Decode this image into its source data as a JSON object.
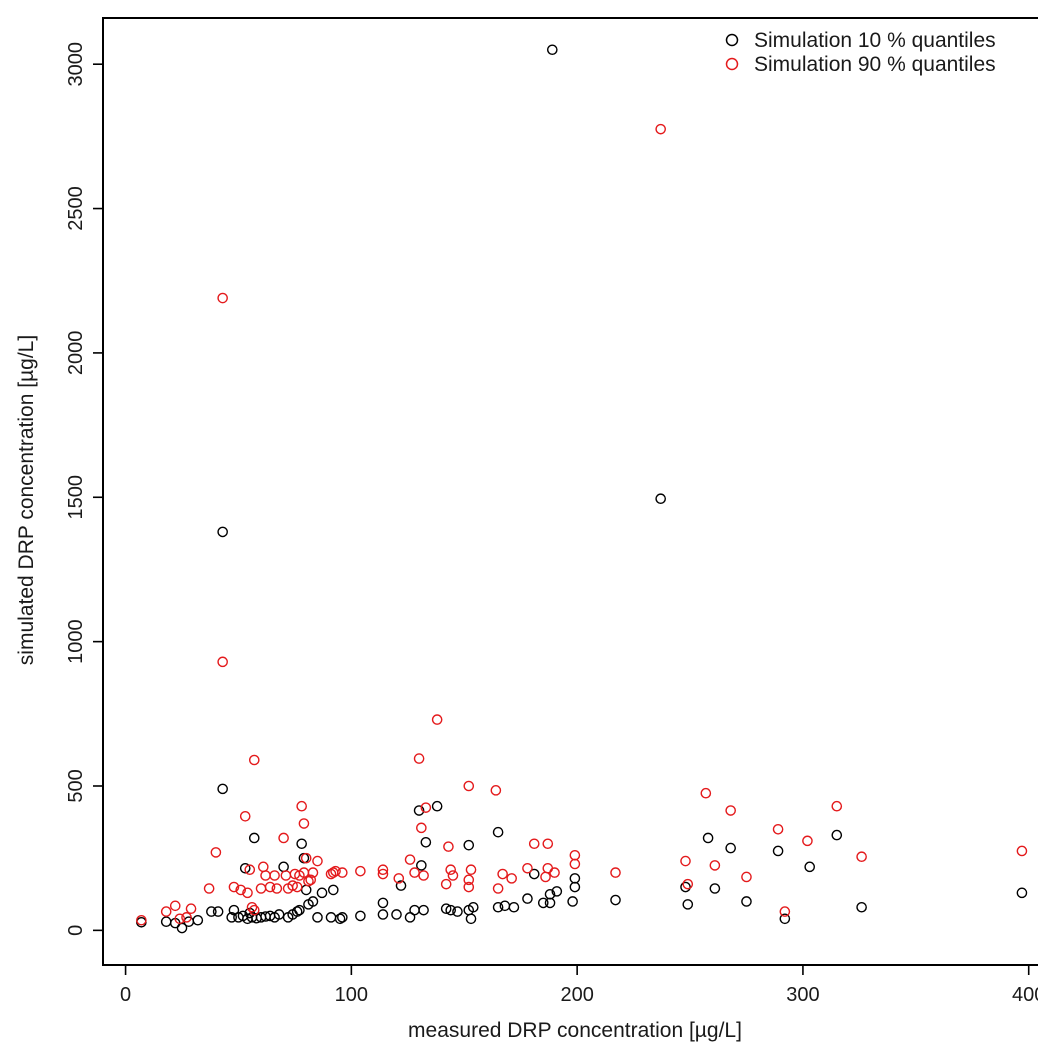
{
  "chart_data": {
    "type": "scatter",
    "title": "",
    "xlabel": "measured DRP concentration [µg/L]",
    "ylabel": "simulated DRP concentration [µg/L]",
    "xlim": [
      -10,
      405
    ],
    "ylim": [
      -120,
      3160
    ],
    "xticks": [
      0,
      100,
      200,
      300,
      400
    ],
    "yticks": [
      0,
      500,
      1000,
      1500,
      2000,
      2500,
      3000
    ],
    "xtick_labels": [
      "0",
      "100",
      "200",
      "300",
      "400"
    ],
    "ytick_labels": [
      "0",
      "500",
      "1000",
      "1500",
      "2000",
      "2500",
      "3000"
    ],
    "grid": false,
    "legend_position": "top-right",
    "legend_marker": "o",
    "series": [
      {
        "name": "Simulation 10 % quantiles",
        "color": "#000000",
        "points": [
          [
            7,
            28
          ],
          [
            18,
            30
          ],
          [
            22,
            25
          ],
          [
            25,
            8
          ],
          [
            28,
            30
          ],
          [
            32,
            35
          ],
          [
            38,
            65
          ],
          [
            41,
            65
          ],
          [
            43,
            490
          ],
          [
            43,
            1380
          ],
          [
            47,
            45
          ],
          [
            48,
            70
          ],
          [
            50,
            45
          ],
          [
            52,
            50
          ],
          [
            53,
            215
          ],
          [
            54,
            40
          ],
          [
            55,
            60
          ],
          [
            56,
            45
          ],
          [
            57,
            320
          ],
          [
            58,
            42
          ],
          [
            60,
            45
          ],
          [
            62,
            48
          ],
          [
            64,
            50
          ],
          [
            66,
            45
          ],
          [
            68,
            55
          ],
          [
            70,
            220
          ],
          [
            72,
            45
          ],
          [
            74,
            55
          ],
          [
            76,
            65
          ],
          [
            77,
            70
          ],
          [
            78,
            300
          ],
          [
            79,
            250
          ],
          [
            80,
            140
          ],
          [
            81,
            90
          ],
          [
            83,
            100
          ],
          [
            85,
            45
          ],
          [
            87,
            130
          ],
          [
            91,
            45
          ],
          [
            92,
            140
          ],
          [
            95,
            40
          ],
          [
            96,
            45
          ],
          [
            104,
            50
          ],
          [
            114,
            55
          ],
          [
            114,
            95
          ],
          [
            120,
            55
          ],
          [
            122,
            155
          ],
          [
            126,
            45
          ],
          [
            128,
            70
          ],
          [
            130,
            415
          ],
          [
            131,
            225
          ],
          [
            132,
            70
          ],
          [
            133,
            305
          ],
          [
            138,
            430
          ],
          [
            142,
            75
          ],
          [
            144,
            70
          ],
          [
            147,
            65
          ],
          [
            152,
            70
          ],
          [
            152,
            295
          ],
          [
            153,
            40
          ],
          [
            154,
            80
          ],
          [
            165,
            80
          ],
          [
            165,
            340
          ],
          [
            168,
            85
          ],
          [
            172,
            80
          ],
          [
            178,
            110
          ],
          [
            181,
            195
          ],
          [
            185,
            95
          ],
          [
            188,
            125
          ],
          [
            188,
            95
          ],
          [
            191,
            135
          ],
          [
            198,
            100
          ],
          [
            199,
            150
          ],
          [
            199,
            180
          ],
          [
            217,
            105
          ],
          [
            237,
            1495
          ],
          [
            248,
            150
          ],
          [
            249,
            90
          ],
          [
            258,
            320
          ],
          [
            261,
            145
          ],
          [
            268,
            285
          ],
          [
            275,
            100
          ],
          [
            289,
            275
          ],
          [
            292,
            40
          ],
          [
            303,
            220
          ],
          [
            315,
            330
          ],
          [
            326,
            80
          ],
          [
            397,
            130
          ],
          [
            189,
            3050
          ]
        ]
      },
      {
        "name": "Simulation 90 % quantiles",
        "color": "#e41a1c",
        "points": [
          [
            7,
            35
          ],
          [
            18,
            65
          ],
          [
            22,
            85
          ],
          [
            24,
            40
          ],
          [
            27,
            45
          ],
          [
            29,
            75
          ],
          [
            37,
            145
          ],
          [
            40,
            270
          ],
          [
            43,
            2190
          ],
          [
            43,
            930
          ],
          [
            48,
            150
          ],
          [
            51,
            140
          ],
          [
            53,
            395
          ],
          [
            54,
            130
          ],
          [
            55,
            210
          ],
          [
            56,
            80
          ],
          [
            57,
            70
          ],
          [
            57,
            590
          ],
          [
            60,
            145
          ],
          [
            61,
            220
          ],
          [
            62,
            190
          ],
          [
            64,
            150
          ],
          [
            66,
            190
          ],
          [
            67,
            145
          ],
          [
            70,
            320
          ],
          [
            71,
            190
          ],
          [
            72,
            145
          ],
          [
            74,
            155
          ],
          [
            75,
            195
          ],
          [
            76,
            150
          ],
          [
            77,
            190
          ],
          [
            78,
            430
          ],
          [
            79,
            370
          ],
          [
            79,
            200
          ],
          [
            80,
            250
          ],
          [
            81,
            170
          ],
          [
            82,
            175
          ],
          [
            83,
            200
          ],
          [
            85,
            240
          ],
          [
            91,
            195
          ],
          [
            92,
            200
          ],
          [
            93,
            205
          ],
          [
            96,
            200
          ],
          [
            104,
            205
          ],
          [
            114,
            210
          ],
          [
            114,
            195
          ],
          [
            121,
            180
          ],
          [
            126,
            245
          ],
          [
            128,
            200
          ],
          [
            130,
            595
          ],
          [
            131,
            355
          ],
          [
            132,
            190
          ],
          [
            133,
            425
          ],
          [
            138,
            730
          ],
          [
            142,
            160
          ],
          [
            143,
            290
          ],
          [
            144,
            210
          ],
          [
            145,
            190
          ],
          [
            152,
            500
          ],
          [
            152,
            175
          ],
          [
            152,
            150
          ],
          [
            153,
            210
          ],
          [
            164,
            485
          ],
          [
            165,
            145
          ],
          [
            167,
            195
          ],
          [
            171,
            180
          ],
          [
            178,
            215
          ],
          [
            181,
            300
          ],
          [
            186,
            185
          ],
          [
            187,
            300
          ],
          [
            187,
            215
          ],
          [
            190,
            200
          ],
          [
            199,
            260
          ],
          [
            199,
            230
          ],
          [
            217,
            200
          ],
          [
            237,
            2775
          ],
          [
            248,
            240
          ],
          [
            249,
            160
          ],
          [
            257,
            475
          ],
          [
            261,
            225
          ],
          [
            268,
            415
          ],
          [
            275,
            185
          ],
          [
            289,
            350
          ],
          [
            292,
            65
          ],
          [
            302,
            310
          ],
          [
            315,
            430
          ],
          [
            326,
            255
          ],
          [
            397,
            275
          ]
        ]
      }
    ]
  }
}
